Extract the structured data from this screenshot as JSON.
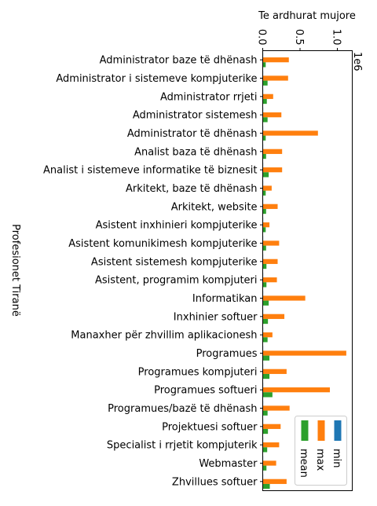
{
  "chart_data": {
    "type": "bar",
    "orientation": "horizontal",
    "x_axis_position": "top",
    "xlabel": "Te ardhurat mujore",
    "ylabel": "Profesionet Tiranë",
    "offset_text": "1e6",
    "xlim": [
      0,
      1.2
    ],
    "xticks": [
      "0.0",
      "0.5",
      "1.0"
    ],
    "xtick_values": [
      0,
      0.5,
      1.0
    ],
    "tick_label_rotation": "rotated 90° (vertical)",
    "grid": false,
    "legend_position": "bottom-right",
    "categories": [
      "Administrator baze të dhënash",
      "Administrator i sistemeve kompjuterike",
      "Administrator rrjeti",
      "Administrator sistemesh",
      "Administrator të dhënash",
      "Analist baza të dhënash",
      "Analist i sistemeve informatike të biznesit",
      "Arkitekt, baze të dhënash",
      "Arkitekt, website",
      "Asistent inxhinieri kompjuterike",
      "Asistent komunikimesh kompjuterike",
      "Asistent sistemesh kompjuterike",
      "Asistent, programim kompjuteri",
      "Informatikan",
      "Inxhinier softuer",
      "Manaxher për zhvillim aplikacionesh",
      "Programues",
      "Programues kompjuteri",
      "Programues softueri",
      "Programues/bazë të dhënash",
      "Projektuesi softuer",
      "Specialist i rrjetit kompjuterik",
      "Webmaster",
      "Zhvillues softuer"
    ],
    "series": [
      {
        "name": "min",
        "color": "#1f77b4",
        "values": [
          0.005,
          0.005,
          0.004,
          0.004,
          0.004,
          0.004,
          0.005,
          0.004,
          0.004,
          0.003,
          0.004,
          0.004,
          0.004,
          0.005,
          0.005,
          0.004,
          0.006,
          0.005,
          0.006,
          0.004,
          0.004,
          0.004,
          0.004,
          0.005
        ]
      },
      {
        "name": "max",
        "color": "#ff7f0e",
        "values": [
          0.35,
          0.34,
          0.14,
          0.25,
          0.74,
          0.26,
          0.26,
          0.12,
          0.2,
          0.09,
          0.22,
          0.2,
          0.19,
          0.57,
          0.29,
          0.13,
          1.12,
          0.32,
          0.9,
          0.36,
          0.24,
          0.22,
          0.18,
          0.32
        ]
      },
      {
        "name": "mean",
        "color": "#2ca02c",
        "values": [
          0.04,
          0.065,
          0.055,
          0.065,
          0.04,
          0.045,
          0.08,
          0.04,
          0.045,
          0.04,
          0.045,
          0.05,
          0.05,
          0.08,
          0.07,
          0.065,
          0.09,
          0.09,
          0.13,
          0.065,
          0.07,
          0.06,
          0.05,
          0.095
        ]
      }
    ]
  }
}
